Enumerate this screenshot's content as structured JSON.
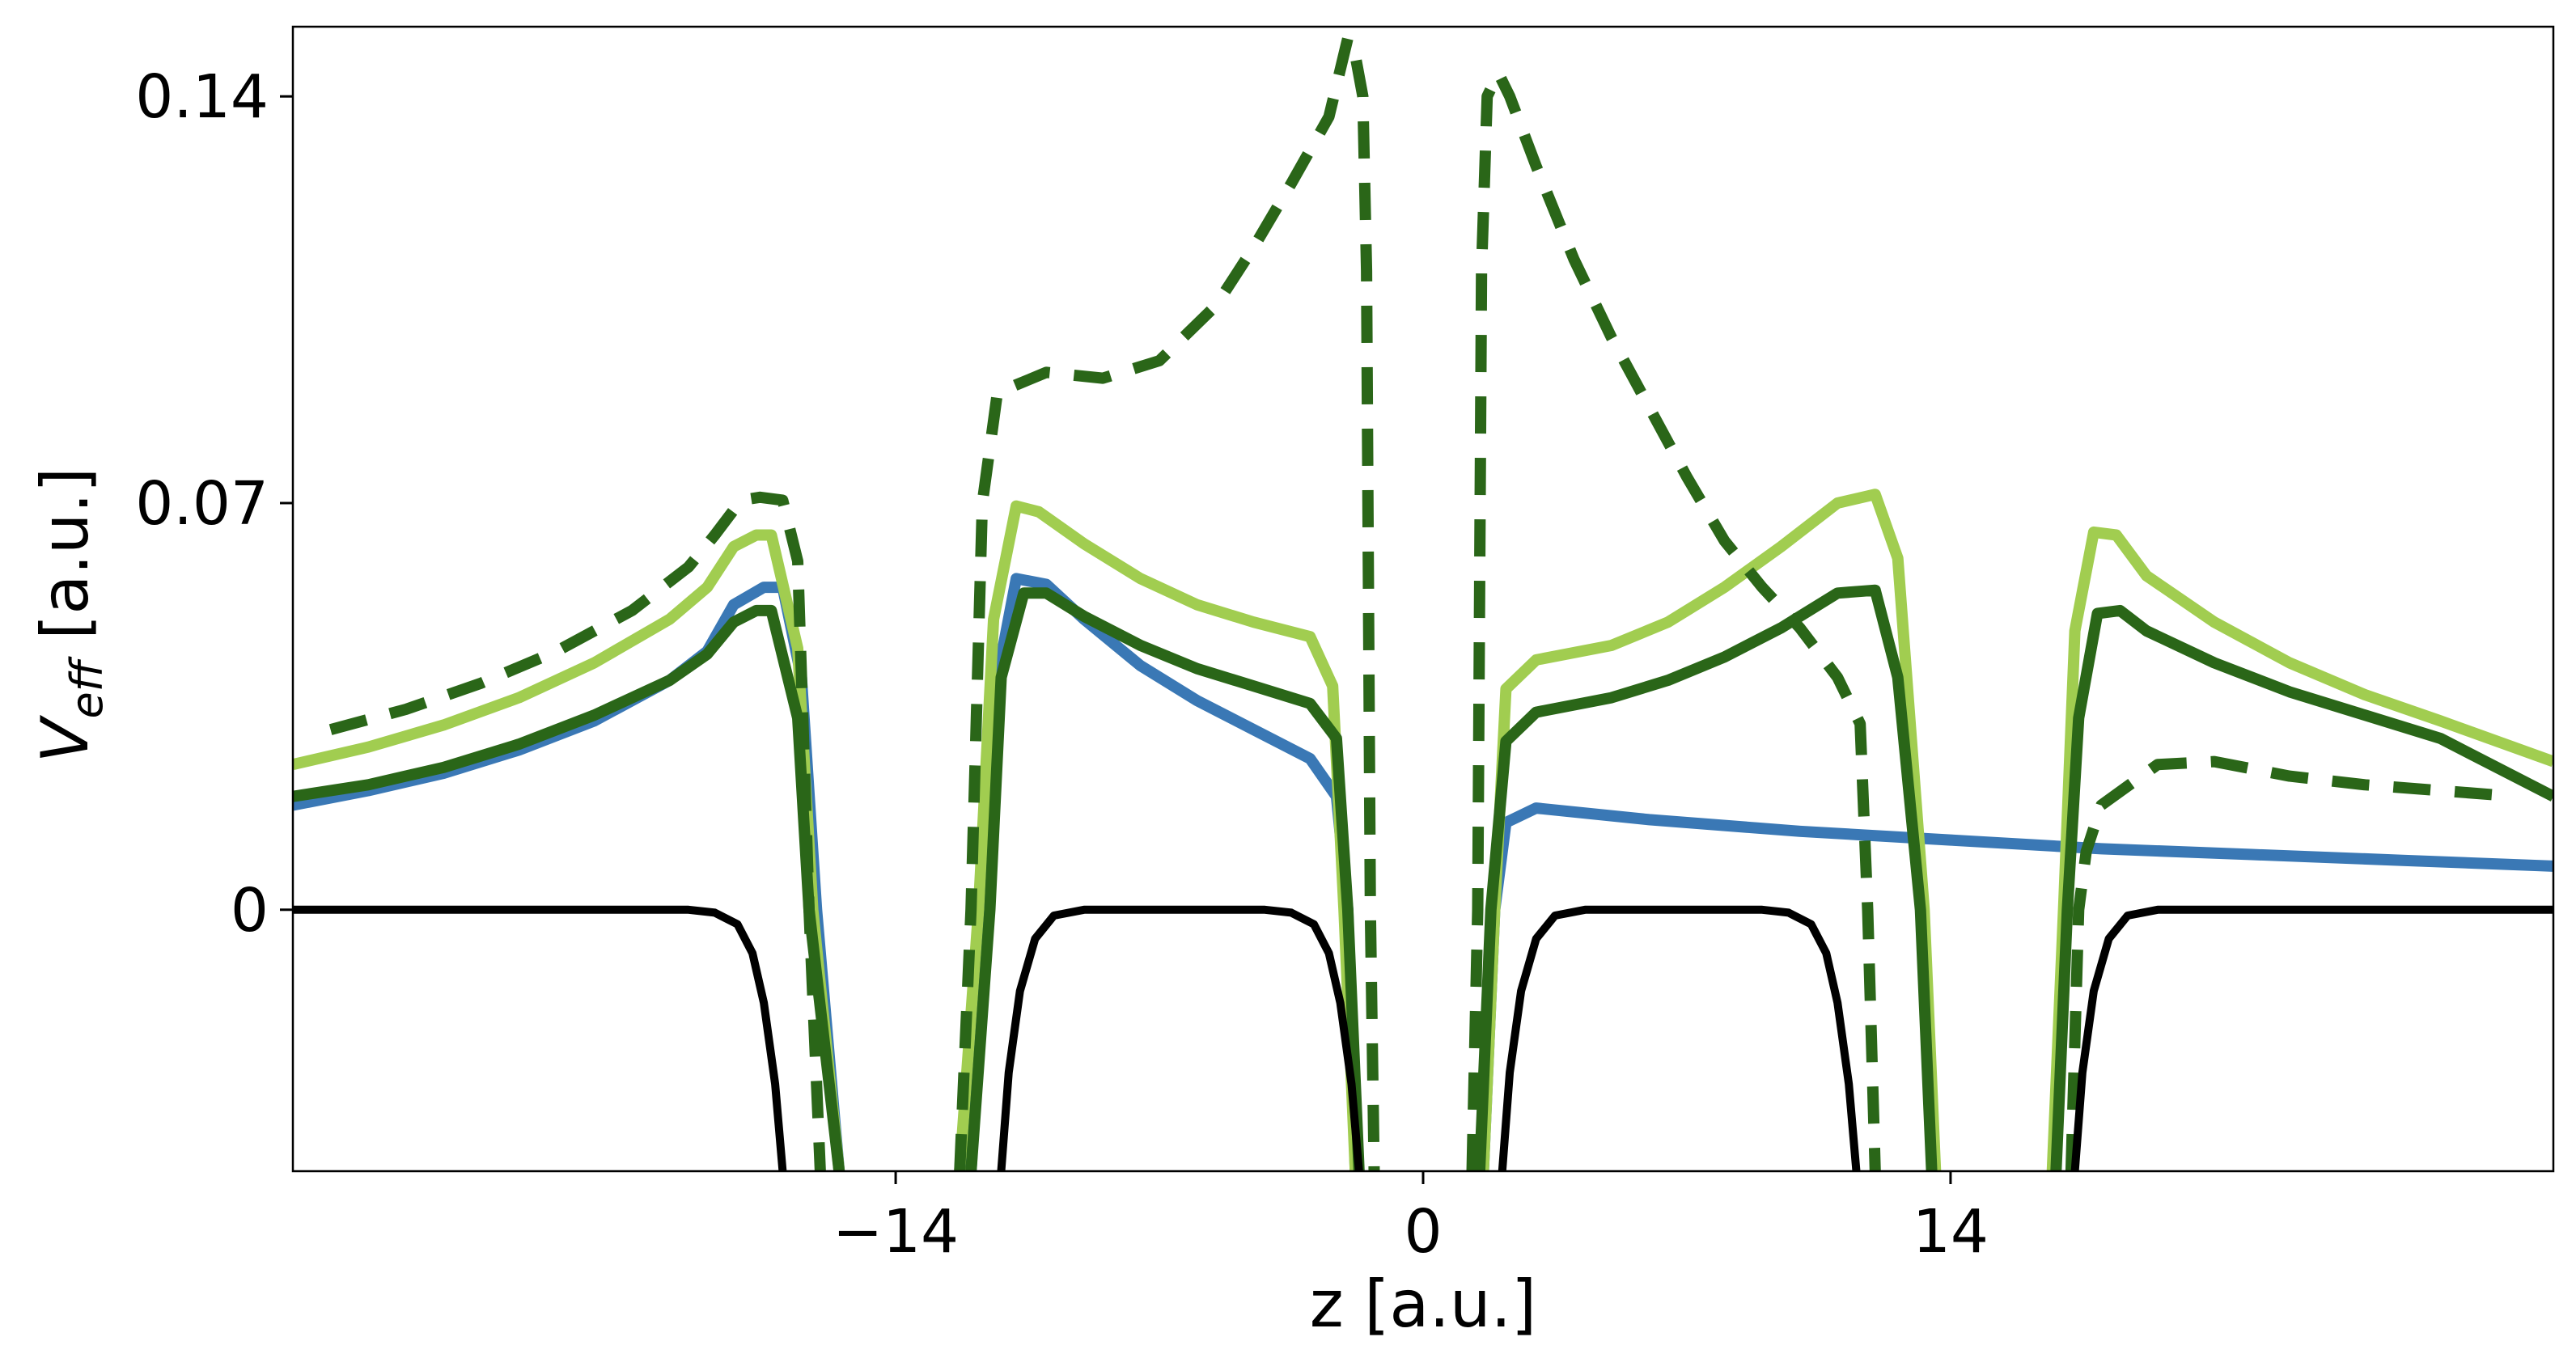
{
  "chart_data": {
    "type": "line",
    "xlabel": "z [a.u.]",
    "ylabel": {
      "main": "V",
      "sub": "eff",
      "unit": " [a.u.]"
    },
    "xlim": [
      -30,
      30
    ],
    "ylim": [
      -0.045,
      0.152
    ],
    "xticks": [
      {
        "value": -14,
        "label": "−14"
      },
      {
        "value": 0,
        "label": "0"
      },
      {
        "value": 14,
        "label": "14"
      }
    ],
    "yticks": [
      {
        "value": 0,
        "label": "0"
      },
      {
        "value": 0.07,
        "label": "0.07"
      },
      {
        "value": 0.14,
        "label": "0.14"
      }
    ],
    "grid": false,
    "legend": "none",
    "series": [
      {
        "key": "blue",
        "color": "#3a78b5",
        "dash": false,
        "points": [
          [
            -30,
            0.018
          ],
          [
            -28,
            0.0205
          ],
          [
            -26,
            0.0235
          ],
          [
            -24,
            0.0275
          ],
          [
            -22,
            0.0325
          ],
          [
            -20,
            0.0395
          ],
          [
            -19,
            0.0445
          ],
          [
            -18.3,
            0.0525
          ],
          [
            -17.5,
            0.0555
          ],
          [
            -17.0,
            0.0555
          ],
          [
            -16.5,
            0.04
          ],
          [
            -16.1,
            0.0
          ],
          [
            -15.5,
            -0.045
          ],
          null,
          [
            -12.0,
            -0.045
          ],
          [
            -11.6,
            0.0
          ],
          [
            -11.3,
            0.04
          ],
          [
            -10.8,
            0.057
          ],
          [
            -10.0,
            0.056
          ],
          [
            -9.0,
            0.05
          ],
          [
            -7.5,
            0.042
          ],
          [
            -6.0,
            0.036
          ],
          [
            -4.5,
            0.031
          ],
          [
            -3.0,
            0.026
          ],
          [
            -2.3,
            0.0195
          ],
          [
            -2.0,
            0.0
          ],
          [
            -1.8,
            -0.045
          ],
          null,
          [
            1.6,
            -0.045
          ],
          [
            1.9,
            0.0
          ],
          [
            2.2,
            0.015
          ],
          [
            3.0,
            0.0175
          ],
          [
            6,
            0.0155
          ],
          [
            10,
            0.0135
          ],
          [
            14,
            0.012
          ],
          [
            18,
            0.0105
          ],
          [
            22,
            0.0095
          ],
          [
            26,
            0.0085
          ],
          [
            30,
            0.0075
          ]
        ]
      },
      {
        "key": "light-green",
        "color": "#a1cd50",
        "dash": false,
        "points": [
          [
            -30,
            0.025
          ],
          [
            -28,
            0.028
          ],
          [
            -26,
            0.0318
          ],
          [
            -24,
            0.0365
          ],
          [
            -22,
            0.0425
          ],
          [
            -20,
            0.05
          ],
          [
            -19,
            0.0555
          ],
          [
            -18.3,
            0.0625
          ],
          [
            -17.7,
            0.0645
          ],
          [
            -17.3,
            0.0645
          ],
          [
            -16.6,
            0.045
          ],
          [
            -16.2,
            0.0
          ],
          [
            -15.5,
            -0.045
          ],
          null,
          [
            -12.3,
            -0.045
          ],
          [
            -11.8,
            0.0
          ],
          [
            -11.4,
            0.05
          ],
          [
            -10.8,
            0.0695
          ],
          [
            -10.2,
            0.0685
          ],
          [
            -9.0,
            0.063
          ],
          [
            -7.5,
            0.057
          ],
          [
            -6.0,
            0.0525
          ],
          [
            -4.5,
            0.0495
          ],
          [
            -3.0,
            0.047
          ],
          [
            -2.4,
            0.0385
          ],
          [
            -2.1,
            0.0
          ],
          [
            -1.8,
            -0.045
          ],
          null,
          [
            1.6,
            -0.045
          ],
          [
            1.9,
            0.0
          ],
          [
            2.2,
            0.038
          ],
          [
            3.0,
            0.043
          ],
          [
            5.0,
            0.0455
          ],
          [
            6.5,
            0.0495
          ],
          [
            8.0,
            0.0555
          ],
          [
            9.5,
            0.0625
          ],
          [
            11.0,
            0.07
          ],
          [
            12.0,
            0.0715
          ],
          [
            12.6,
            0.0605
          ],
          [
            13.3,
            0.0
          ],
          [
            13.6,
            -0.045
          ],
          null,
          [
            16.7,
            -0.045
          ],
          [
            17.0,
            0.0
          ],
          [
            17.3,
            0.048
          ],
          [
            17.8,
            0.065
          ],
          [
            18.4,
            0.0645
          ],
          [
            19.2,
            0.0575
          ],
          [
            21,
            0.0495
          ],
          [
            23,
            0.0425
          ],
          [
            25,
            0.037
          ],
          [
            27,
            0.0325
          ],
          [
            30,
            0.0255
          ]
        ]
      },
      {
        "key": "dark-green",
        "color": "#2a6618",
        "dash": false,
        "points": [
          [
            -30,
            0.0195
          ],
          [
            -28,
            0.0215
          ],
          [
            -26,
            0.0245
          ],
          [
            -24,
            0.0285
          ],
          [
            -22,
            0.0335
          ],
          [
            -20,
            0.0395
          ],
          [
            -19,
            0.044
          ],
          [
            -18.3,
            0.0495
          ],
          [
            -17.7,
            0.0515
          ],
          [
            -17.3,
            0.0515
          ],
          [
            -16.6,
            0.033
          ],
          [
            -16.3,
            0.0
          ],
          [
            -15.5,
            -0.045
          ],
          null,
          [
            -12.0,
            -0.045
          ],
          [
            -11.5,
            0.0
          ],
          [
            -11.2,
            0.04
          ],
          [
            -10.6,
            0.0545
          ],
          [
            -10.0,
            0.0545
          ],
          [
            -9.0,
            0.0505
          ],
          [
            -7.5,
            0.0455
          ],
          [
            -6.0,
            0.0415
          ],
          [
            -4.5,
            0.0385
          ],
          [
            -3.0,
            0.0355
          ],
          [
            -2.3,
            0.0295
          ],
          [
            -2.0,
            0.0
          ],
          [
            -1.7,
            -0.045
          ],
          null,
          [
            1.5,
            -0.045
          ],
          [
            1.8,
            0.0
          ],
          [
            2.2,
            0.029
          ],
          [
            3.0,
            0.034
          ],
          [
            5.0,
            0.0365
          ],
          [
            6.5,
            0.0395
          ],
          [
            8.0,
            0.0435
          ],
          [
            9.5,
            0.0485
          ],
          [
            11.0,
            0.0545
          ],
          [
            12.0,
            0.055
          ],
          [
            12.6,
            0.04
          ],
          [
            13.2,
            0.0
          ],
          [
            13.5,
            -0.045
          ],
          null,
          [
            16.8,
            -0.045
          ],
          [
            17.1,
            0.0
          ],
          [
            17.4,
            0.033
          ],
          [
            17.9,
            0.051
          ],
          [
            18.5,
            0.0515
          ],
          [
            19.2,
            0.048
          ],
          [
            21,
            0.0425
          ],
          [
            23,
            0.0375
          ],
          [
            25,
            0.0335
          ],
          [
            27,
            0.0295
          ],
          [
            30,
            0.0195
          ]
        ]
      },
      {
        "key": "dark-green-dashed",
        "color": "#2a6618",
        "dash": true,
        "points": [
          [
            -29,
            0.031
          ],
          [
            -27,
            0.0345
          ],
          [
            -25,
            0.039
          ],
          [
            -23,
            0.0445
          ],
          [
            -21,
            0.0515
          ],
          [
            -19.5,
            0.059
          ],
          [
            -18.8,
            0.0645
          ],
          [
            -18.1,
            0.0705
          ],
          [
            -17.6,
            0.071
          ],
          [
            -17.0,
            0.0705
          ],
          [
            -16.6,
            0.06
          ],
          [
            -16.3,
            0.0
          ],
          [
            -16.0,
            -0.045
          ],
          null,
          [
            -12.3,
            -0.045
          ],
          [
            -12.0,
            0.0
          ],
          [
            -11.7,
            0.07
          ],
          [
            -11.3,
            0.089
          ],
          [
            -10.0,
            0.0925
          ],
          [
            -8.5,
            0.0915
          ],
          [
            -7.0,
            0.0945
          ],
          [
            -5.5,
            0.104
          ],
          [
            -4.5,
            0.114
          ],
          [
            -3.5,
            0.125
          ],
          [
            -2.5,
            0.1365
          ],
          [
            -2.0,
            0.15
          ],
          [
            -1.8,
            0.147
          ],
          [
            -1.6,
            0.14
          ],
          [
            -1.5,
            0.11
          ],
          [
            -1.4,
            0.0
          ],
          [
            -1.3,
            -0.045
          ],
          null,
          [
            1.3,
            -0.045
          ],
          [
            1.45,
            0.0
          ],
          [
            1.55,
            0.11
          ],
          [
            1.7,
            0.14
          ],
          [
            2.0,
            0.144
          ],
          [
            2.3,
            0.14
          ],
          [
            3.0,
            0.128
          ],
          [
            4.0,
            0.112
          ],
          [
            5.0,
            0.0985
          ],
          [
            6.0,
            0.0865
          ],
          [
            7.0,
            0.0745
          ],
          [
            8.0,
            0.0635
          ],
          [
            9.0,
            0.0555
          ],
          [
            10.0,
            0.0485
          ],
          [
            11.0,
            0.04
          ],
          [
            11.6,
            0.032
          ],
          [
            11.8,
            0.0
          ],
          [
            12.0,
            -0.045
          ],
          null,
          [
            17.2,
            -0.045
          ],
          [
            17.4,
            0.0
          ],
          [
            17.6,
            0.01
          ],
          [
            18.0,
            0.018
          ],
          [
            19.5,
            0.025
          ],
          [
            21,
            0.0255
          ],
          [
            23,
            0.023
          ],
          [
            25,
            0.0215
          ],
          [
            27,
            0.0205
          ],
          [
            29,
            0.0195
          ]
        ]
      },
      {
        "key": "black",
        "color": "#000000",
        "dash": false,
        "points": [
          [
            -30,
            0.0
          ],
          [
            -19.5,
            0.0
          ],
          [
            -18.8,
            -0.0005
          ],
          [
            -18.2,
            -0.0025
          ],
          [
            -17.8,
            -0.0075
          ],
          [
            -17.5,
            -0.016
          ],
          [
            -17.2,
            -0.03
          ],
          [
            -17.0,
            -0.045
          ],
          null,
          [
            -11.2,
            -0.045
          ],
          [
            -11.0,
            -0.028
          ],
          [
            -10.7,
            -0.014
          ],
          [
            -10.3,
            -0.005
          ],
          [
            -9.8,
            -0.001
          ],
          [
            -9.0,
            0.0
          ],
          [
            -4.2,
            0.0
          ],
          [
            -3.5,
            -0.0005
          ],
          [
            -2.9,
            -0.0025
          ],
          [
            -2.5,
            -0.0075
          ],
          [
            -2.2,
            -0.016
          ],
          [
            -1.9,
            -0.03
          ],
          [
            -1.7,
            -0.045
          ],
          null,
          [
            2.1,
            -0.045
          ],
          [
            2.3,
            -0.028
          ],
          [
            2.6,
            -0.014
          ],
          [
            3.0,
            -0.005
          ],
          [
            3.5,
            -0.001
          ],
          [
            4.3,
            0.0
          ],
          [
            9.0,
            0.0
          ],
          [
            9.7,
            -0.0005
          ],
          [
            10.3,
            -0.0025
          ],
          [
            10.7,
            -0.0075
          ],
          [
            11.0,
            -0.016
          ],
          [
            11.3,
            -0.03
          ],
          [
            11.5,
            -0.045
          ],
          null,
          [
            17.3,
            -0.045
          ],
          [
            17.5,
            -0.028
          ],
          [
            17.8,
            -0.014
          ],
          [
            18.2,
            -0.005
          ],
          [
            18.7,
            -0.001
          ],
          [
            19.5,
            0.0
          ],
          [
            30,
            0.0
          ]
        ]
      }
    ]
  }
}
